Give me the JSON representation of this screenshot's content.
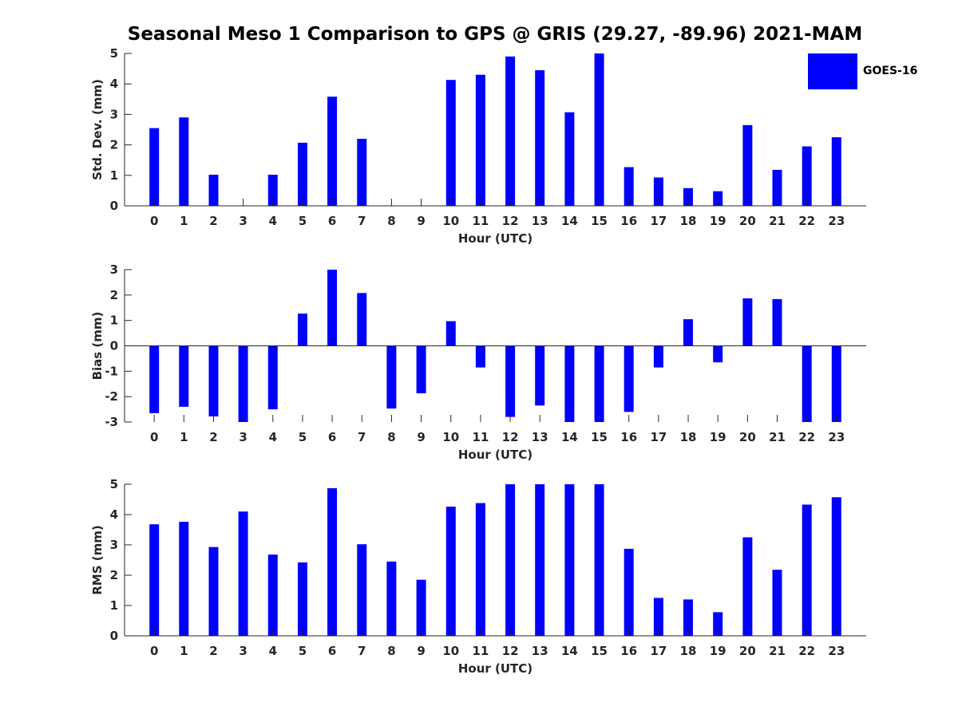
{
  "chart_data": {
    "title": "Seasonal Meso 1 Comparison to GPS @ GRIS (29.27, -89.96) 2021-MAM",
    "legend": {
      "label": "GOES-16",
      "placement": "top-right",
      "color": "#0000ff"
    },
    "bar_color": "#0000ff",
    "subplots": [
      {
        "id": "std",
        "type": "bar",
        "xlabel": "Hour (UTC)",
        "ylabel": "Std. Dev. (mm)",
        "ylim": [
          0,
          5
        ],
        "yticks": [
          0,
          1,
          2,
          3,
          4,
          5
        ],
        "categories": [
          "0",
          "1",
          "2",
          "3",
          "4",
          "5",
          "6",
          "7",
          "8",
          "9",
          "10",
          "11",
          "12",
          "13",
          "14",
          "15",
          "16",
          "17",
          "18",
          "19",
          "20",
          "21",
          "22",
          "23"
        ],
        "values": [
          2.55,
          2.9,
          1.02,
          null,
          1.02,
          2.07,
          3.58,
          2.2,
          null,
          null,
          4.13,
          4.3,
          4.9,
          4.45,
          3.07,
          5.0,
          1.27,
          0.93,
          0.58,
          0.48,
          2.65,
          1.18,
          1.95,
          2.25
        ]
      },
      {
        "id": "bias",
        "type": "bar",
        "xlabel": "Hour (UTC)",
        "ylabel": "Bias (mm)",
        "ylim": [
          -3,
          3
        ],
        "yticks": [
          -3,
          -2,
          -1,
          0,
          1,
          2,
          3
        ],
        "categories": [
          "0",
          "1",
          "2",
          "3",
          "4",
          "5",
          "6",
          "7",
          "8",
          "9",
          "10",
          "11",
          "12",
          "13",
          "14",
          "15",
          "16",
          "17",
          "18",
          "19",
          "20",
          "21",
          "22",
          "23"
        ],
        "values": [
          -2.65,
          -2.4,
          -2.78,
          -3.0,
          -2.5,
          1.27,
          3.0,
          2.08,
          -2.47,
          -1.87,
          0.97,
          -0.85,
          -2.8,
          -2.35,
          -3.0,
          -3.0,
          -2.6,
          -0.85,
          1.05,
          -0.65,
          1.87,
          1.84,
          -3.0,
          -3.0
        ]
      },
      {
        "id": "rms",
        "type": "bar",
        "xlabel": "Hour (UTC)",
        "ylabel": "RMS (mm)",
        "ylim": [
          0,
          5
        ],
        "yticks": [
          0,
          1,
          2,
          3,
          4,
          5
        ],
        "categories": [
          "0",
          "1",
          "2",
          "3",
          "4",
          "5",
          "6",
          "7",
          "8",
          "9",
          "10",
          "11",
          "12",
          "13",
          "14",
          "15",
          "16",
          "17",
          "18",
          "19",
          "20",
          "21",
          "22",
          "23"
        ],
        "values": [
          3.68,
          3.76,
          2.93,
          4.1,
          2.68,
          2.42,
          4.87,
          3.02,
          2.45,
          1.85,
          4.26,
          4.38,
          5.0,
          5.0,
          5.0,
          5.0,
          2.87,
          1.25,
          1.2,
          0.78,
          3.25,
          2.18,
          4.33,
          4.57
        ]
      }
    ]
  }
}
